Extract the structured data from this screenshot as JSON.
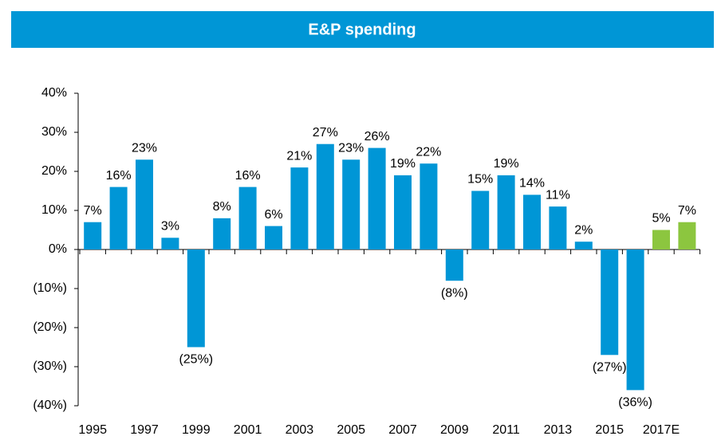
{
  "chart_data": {
    "type": "bar",
    "title": "E&P spending",
    "categories": [
      "1995",
      null,
      "1997",
      null,
      "1999",
      null,
      "2001",
      null,
      "2003",
      null,
      "2005",
      null,
      "2007",
      null,
      "2009",
      null,
      "2011",
      null,
      "2013",
      null,
      "2015",
      null,
      "2017E",
      null
    ],
    "values": [
      7,
      16,
      23,
      3,
      -25,
      8,
      16,
      6,
      21,
      27,
      23,
      26,
      19,
      22,
      -8,
      15,
      19,
      14,
      11,
      2,
      -27,
      -36,
      5,
      7
    ],
    "value_labels": [
      "7%",
      "16%",
      "23%",
      "3%",
      "(25%)",
      "8%",
      "16%",
      "6%",
      "21%",
      "27%",
      "23%",
      "26%",
      "19%",
      "22%",
      "(8%)",
      "15%",
      "19%",
      "14%",
      "11%",
      "2%",
      "(27%)",
      "(36%)",
      "5%",
      "7%"
    ],
    "colors": [
      "#0096d6",
      "#0096d6",
      "#0096d6",
      "#0096d6",
      "#0096d6",
      "#0096d6",
      "#0096d6",
      "#0096d6",
      "#0096d6",
      "#0096d6",
      "#0096d6",
      "#0096d6",
      "#0096d6",
      "#0096d6",
      "#0096d6",
      "#0096d6",
      "#0096d6",
      "#0096d6",
      "#0096d6",
      "#0096d6",
      "#0096d6",
      "#0096d6",
      "#8cc63f",
      "#8cc63f"
    ],
    "ylim": [
      -40,
      40
    ],
    "yticks": [
      {
        "value": -40,
        "label": "(40%)"
      },
      {
        "value": -30,
        "label": "(30%)"
      },
      {
        "value": -20,
        "label": "(20%)"
      },
      {
        "value": -10,
        "label": "(10%)"
      },
      {
        "value": 0,
        "label": "0%"
      },
      {
        "value": 10,
        "label": "10%"
      },
      {
        "value": 20,
        "label": "20%"
      },
      {
        "value": 30,
        "label": "30%"
      },
      {
        "value": 40,
        "label": "40%"
      }
    ],
    "grid": false
  }
}
